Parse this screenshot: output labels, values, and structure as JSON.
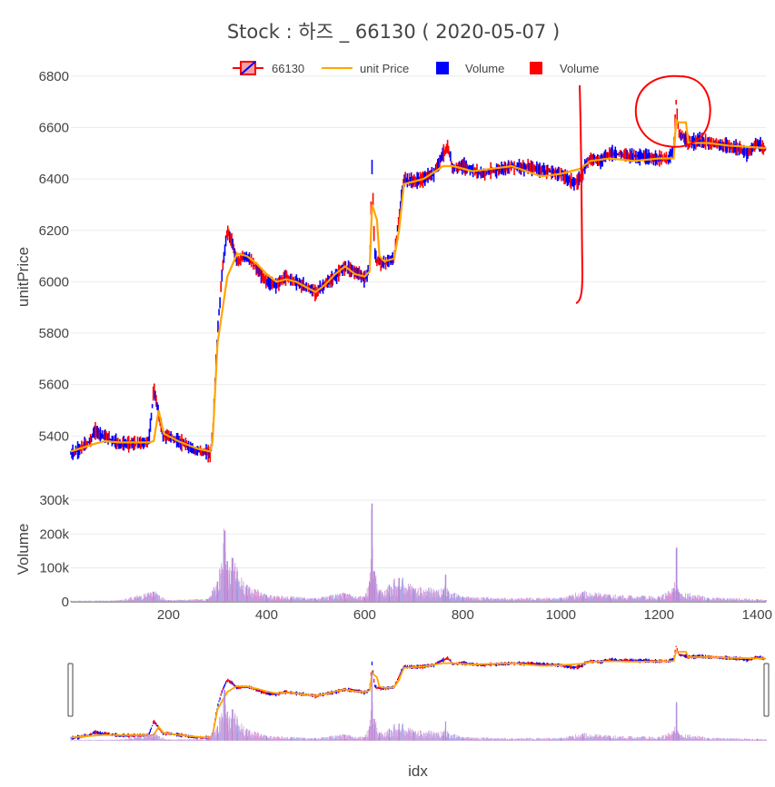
{
  "chart_data": {
    "type": "line",
    "title": "Stock :  하즈 _ 66130 ( 2020-05-07 )",
    "legend": {
      "placement": "top-center",
      "items": [
        {
          "label": "66130",
          "kind": "candlestick"
        },
        {
          "label": "unit Price",
          "kind": "line",
          "color": "#FFA500"
        },
        {
          "label": "Volume",
          "kind": "bar",
          "color": "#0000FF"
        },
        {
          "label": "Volume",
          "kind": "bar",
          "color": "#FF0000"
        }
      ]
    },
    "colors": {
      "increasing": "#0000FF",
      "decreasing": "#FF0000",
      "unit_price": "#FFA500",
      "volume_fill": "#c8a0d8",
      "grid": "#ebebeb",
      "annotation": "#FF0000"
    },
    "x_axis": {
      "label": "idx",
      "range": [
        1,
        1418
      ],
      "ticks": [
        "200",
        "400",
        "600",
        "800",
        "1000",
        "1200",
        "1400"
      ]
    },
    "price_axis": {
      "label": "unitPrice",
      "range": [
        5320,
        6810
      ],
      "ticks": [
        "5400",
        "5600",
        "5800",
        "6000",
        "6200",
        "6400",
        "6600",
        "6800"
      ]
    },
    "volume_axis": {
      "label": "Volume",
      "range": [
        0,
        300000
      ],
      "ticks": [
        "0",
        "100k",
        "200k",
        "300k"
      ]
    },
    "price_series": {
      "name": "66130",
      "x": [
        1,
        20,
        40,
        50,
        70,
        100,
        140,
        160,
        170,
        175,
        180,
        190,
        200,
        220,
        240,
        260,
        270,
        285,
        290,
        300,
        310,
        320,
        330,
        340,
        360,
        380,
        400,
        420,
        440,
        460,
        480,
        500,
        520,
        540,
        560,
        580,
        600,
        610,
        615,
        620,
        625,
        640,
        660,
        670,
        680,
        700,
        720,
        740,
        760,
        770,
        780,
        800,
        840,
        900,
        950,
        1000,
        1030,
        1045,
        1050,
        1060,
        1080,
        1100,
        1150,
        1200,
        1220,
        1230,
        1235,
        1240,
        1250,
        1260,
        1280,
        1300,
        1330,
        1360,
        1380,
        1400,
        1418
      ],
      "y": [
        5330,
        5350,
        5380,
        5420,
        5400,
        5370,
        5370,
        5380,
        5580,
        5540,
        5480,
        5400,
        5400,
        5380,
        5360,
        5340,
        5340,
        5330,
        5400,
        5800,
        6050,
        6200,
        6150,
        6080,
        6100,
        6050,
        6000,
        5990,
        6020,
        6000,
        5980,
        5960,
        5990,
        6020,
        6060,
        6040,
        6010,
        6050,
        6450,
        6120,
        6080,
        6070,
        6090,
        6250,
        6400,
        6390,
        6400,
        6420,
        6500,
        6520,
        6440,
        6450,
        6420,
        6450,
        6440,
        6420,
        6380,
        6420,
        6460,
        6480,
        6470,
        6500,
        6490,
        6480,
        6480,
        6510,
        6700,
        6580,
        6560,
        6540,
        6550,
        6540,
        6530,
        6520,
        6500,
        6540,
        6510
      ]
    },
    "unit_price_series": {
      "name": "unit Price",
      "x": [
        1,
        50,
        70,
        100,
        160,
        170,
        180,
        190,
        200,
        220,
        260,
        285,
        290,
        300,
        320,
        340,
        360,
        380,
        400,
        420,
        440,
        460,
        480,
        500,
        520,
        540,
        560,
        580,
        600,
        610,
        615,
        625,
        630,
        640,
        660,
        670,
        680,
        700,
        720,
        760,
        780,
        820,
        860,
        900,
        960,
        1000,
        1040,
        1060,
        1100,
        1150,
        1200,
        1230,
        1235,
        1240,
        1255,
        1260,
        1300,
        1340,
        1418
      ],
      "y": [
        5340,
        5370,
        5380,
        5375,
        5375,
        5380,
        5500,
        5410,
        5400,
        5380,
        5350,
        5340,
        5380,
        5760,
        6020,
        6110,
        6100,
        6070,
        6030,
        6000,
        6010,
        6000,
        5980,
        5960,
        5990,
        6030,
        6060,
        6030,
        6020,
        6040,
        6300,
        6240,
        6100,
        6080,
        6090,
        6200,
        6380,
        6390,
        6400,
        6450,
        6450,
        6430,
        6440,
        6450,
        6410,
        6420,
        6440,
        6470,
        6480,
        6470,
        6480,
        6480,
        6630,
        6620,
        6620,
        6540,
        6540,
        6530,
        6520
      ]
    },
    "volume_series": {
      "name": "Volume",
      "x": [
        1,
        100,
        170,
        200,
        280,
        300,
        315,
        320,
        330,
        340,
        360,
        400,
        450,
        500,
        560,
        600,
        610,
        615,
        620,
        630,
        650,
        670,
        700,
        760,
        765,
        770,
        800,
        900,
        1000,
        1045,
        1100,
        1200,
        1230,
        1236,
        1240,
        1300,
        1400,
        1418
      ],
      "y": [
        3000,
        4000,
        30000,
        5000,
        8000,
        60000,
        210000,
        120000,
        130000,
        90000,
        50000,
        20000,
        15000,
        10000,
        25000,
        15000,
        60000,
        290000,
        90000,
        30000,
        50000,
        70000,
        40000,
        35000,
        80000,
        30000,
        15000,
        10000,
        12000,
        30000,
        20000,
        15000,
        40000,
        160000,
        30000,
        12000,
        8000,
        5000
      ]
    },
    "range_slider": true,
    "annotations": [
      {
        "kind": "freehand-vertical-line",
        "x": 1040
      },
      {
        "kind": "freehand-circle",
        "x": 1240,
        "y": 6620
      }
    ]
  }
}
